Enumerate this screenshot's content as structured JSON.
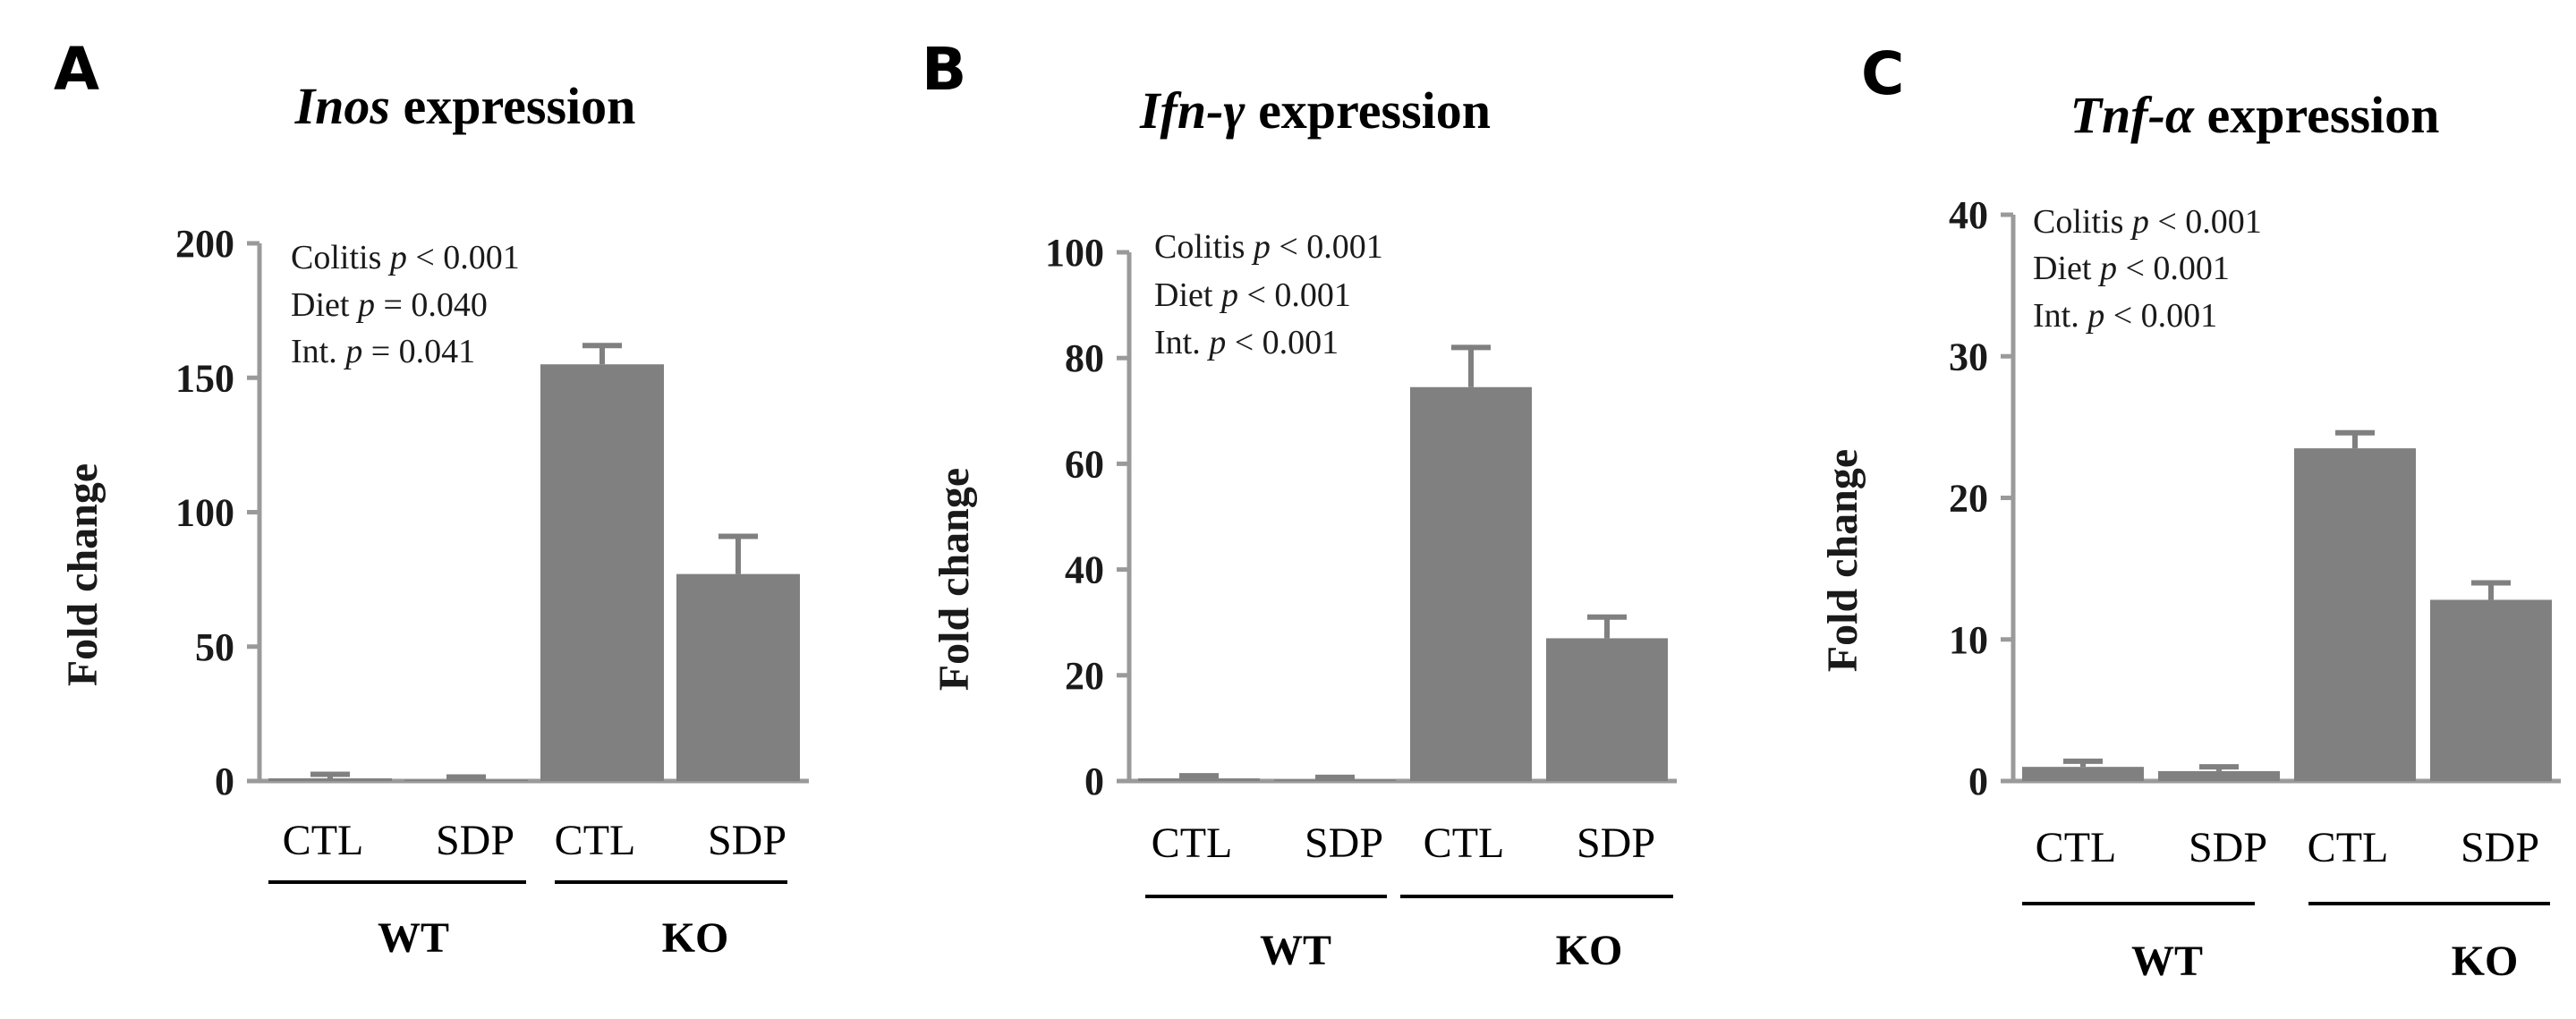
{
  "chart_data": [
    {
      "type": "bar",
      "panel": "A",
      "title_italic": "Inos",
      "title_rest": " expression",
      "ylabel": "Fold change",
      "ylim": [
        0,
        200
      ],
      "yticks": [
        0,
        50,
        100,
        150,
        200
      ],
      "categories": [
        "CTL",
        "SDP",
        "CTL",
        "SDP"
      ],
      "groups": [
        {
          "label": "WT",
          "span": [
            0,
            1
          ]
        },
        {
          "label": "KO",
          "span": [
            2,
            3
          ]
        }
      ],
      "values": [
        1,
        0.5,
        155,
        77
      ],
      "errors": [
        1.5,
        1,
        7,
        14
      ],
      "annotations": [
        {
          "pre": "Colitis ",
          "p": "p",
          "post": " < 0.001"
        },
        {
          "pre": "Diet ",
          "p": "p",
          "post": " = 0.040"
        },
        {
          "pre": "Int. ",
          "p": "p",
          "post": " = 0.041"
        }
      ]
    },
    {
      "type": "bar",
      "panel": "B",
      "title_italic": "Ifn-γ",
      "title_rest": " expression",
      "ylabel": "Fold change",
      "ylim": [
        0,
        100
      ],
      "yticks": [
        0,
        20,
        40,
        60,
        80,
        100
      ],
      "categories": [
        "CTL",
        "SDP",
        "CTL",
        "SDP"
      ],
      "groups": [
        {
          "label": "WT",
          "span": [
            0,
            1
          ]
        },
        {
          "label": "KO",
          "span": [
            2,
            3
          ]
        }
      ],
      "values": [
        0.5,
        0.3,
        74.5,
        27
      ],
      "errors": [
        0.5,
        0.4,
        7.5,
        4
      ],
      "annotations": [
        {
          "pre": "Colitis ",
          "p": "p",
          "post": " < 0.001"
        },
        {
          "pre": "Diet ",
          "p": "p",
          "post": " < 0.001"
        },
        {
          "pre": "Int. ",
          "p": "p",
          "post": " < 0.001"
        }
      ]
    },
    {
      "type": "bar",
      "panel": "C",
      "title_italic": "Tnf-α",
      "title_rest": " expression",
      "ylabel": "Fold change",
      "ylim": [
        0,
        40
      ],
      "yticks": [
        0,
        10,
        20,
        30,
        40
      ],
      "categories": [
        "CTL",
        "SDP",
        "CTL",
        "SDP"
      ],
      "groups": [
        {
          "label": "WT",
          "span": [
            0,
            1
          ]
        },
        {
          "label": "KO",
          "span": [
            2,
            3
          ]
        }
      ],
      "values": [
        1,
        0.7,
        23.5,
        12.8
      ],
      "errors": [
        0.4,
        0.3,
        1.1,
        1.2
      ],
      "annotations": [
        {
          "pre": "Colitis ",
          "p": "p",
          "post": " < 0.001"
        },
        {
          "pre": "Diet ",
          "p": "p",
          "post": " < 0.001"
        },
        {
          "pre": "Int. ",
          "p": "p",
          "post": " < 0.001"
        }
      ]
    }
  ],
  "colors": {
    "bar": "#808080",
    "axis": "#9a9a9a",
    "text": "#000000"
  }
}
